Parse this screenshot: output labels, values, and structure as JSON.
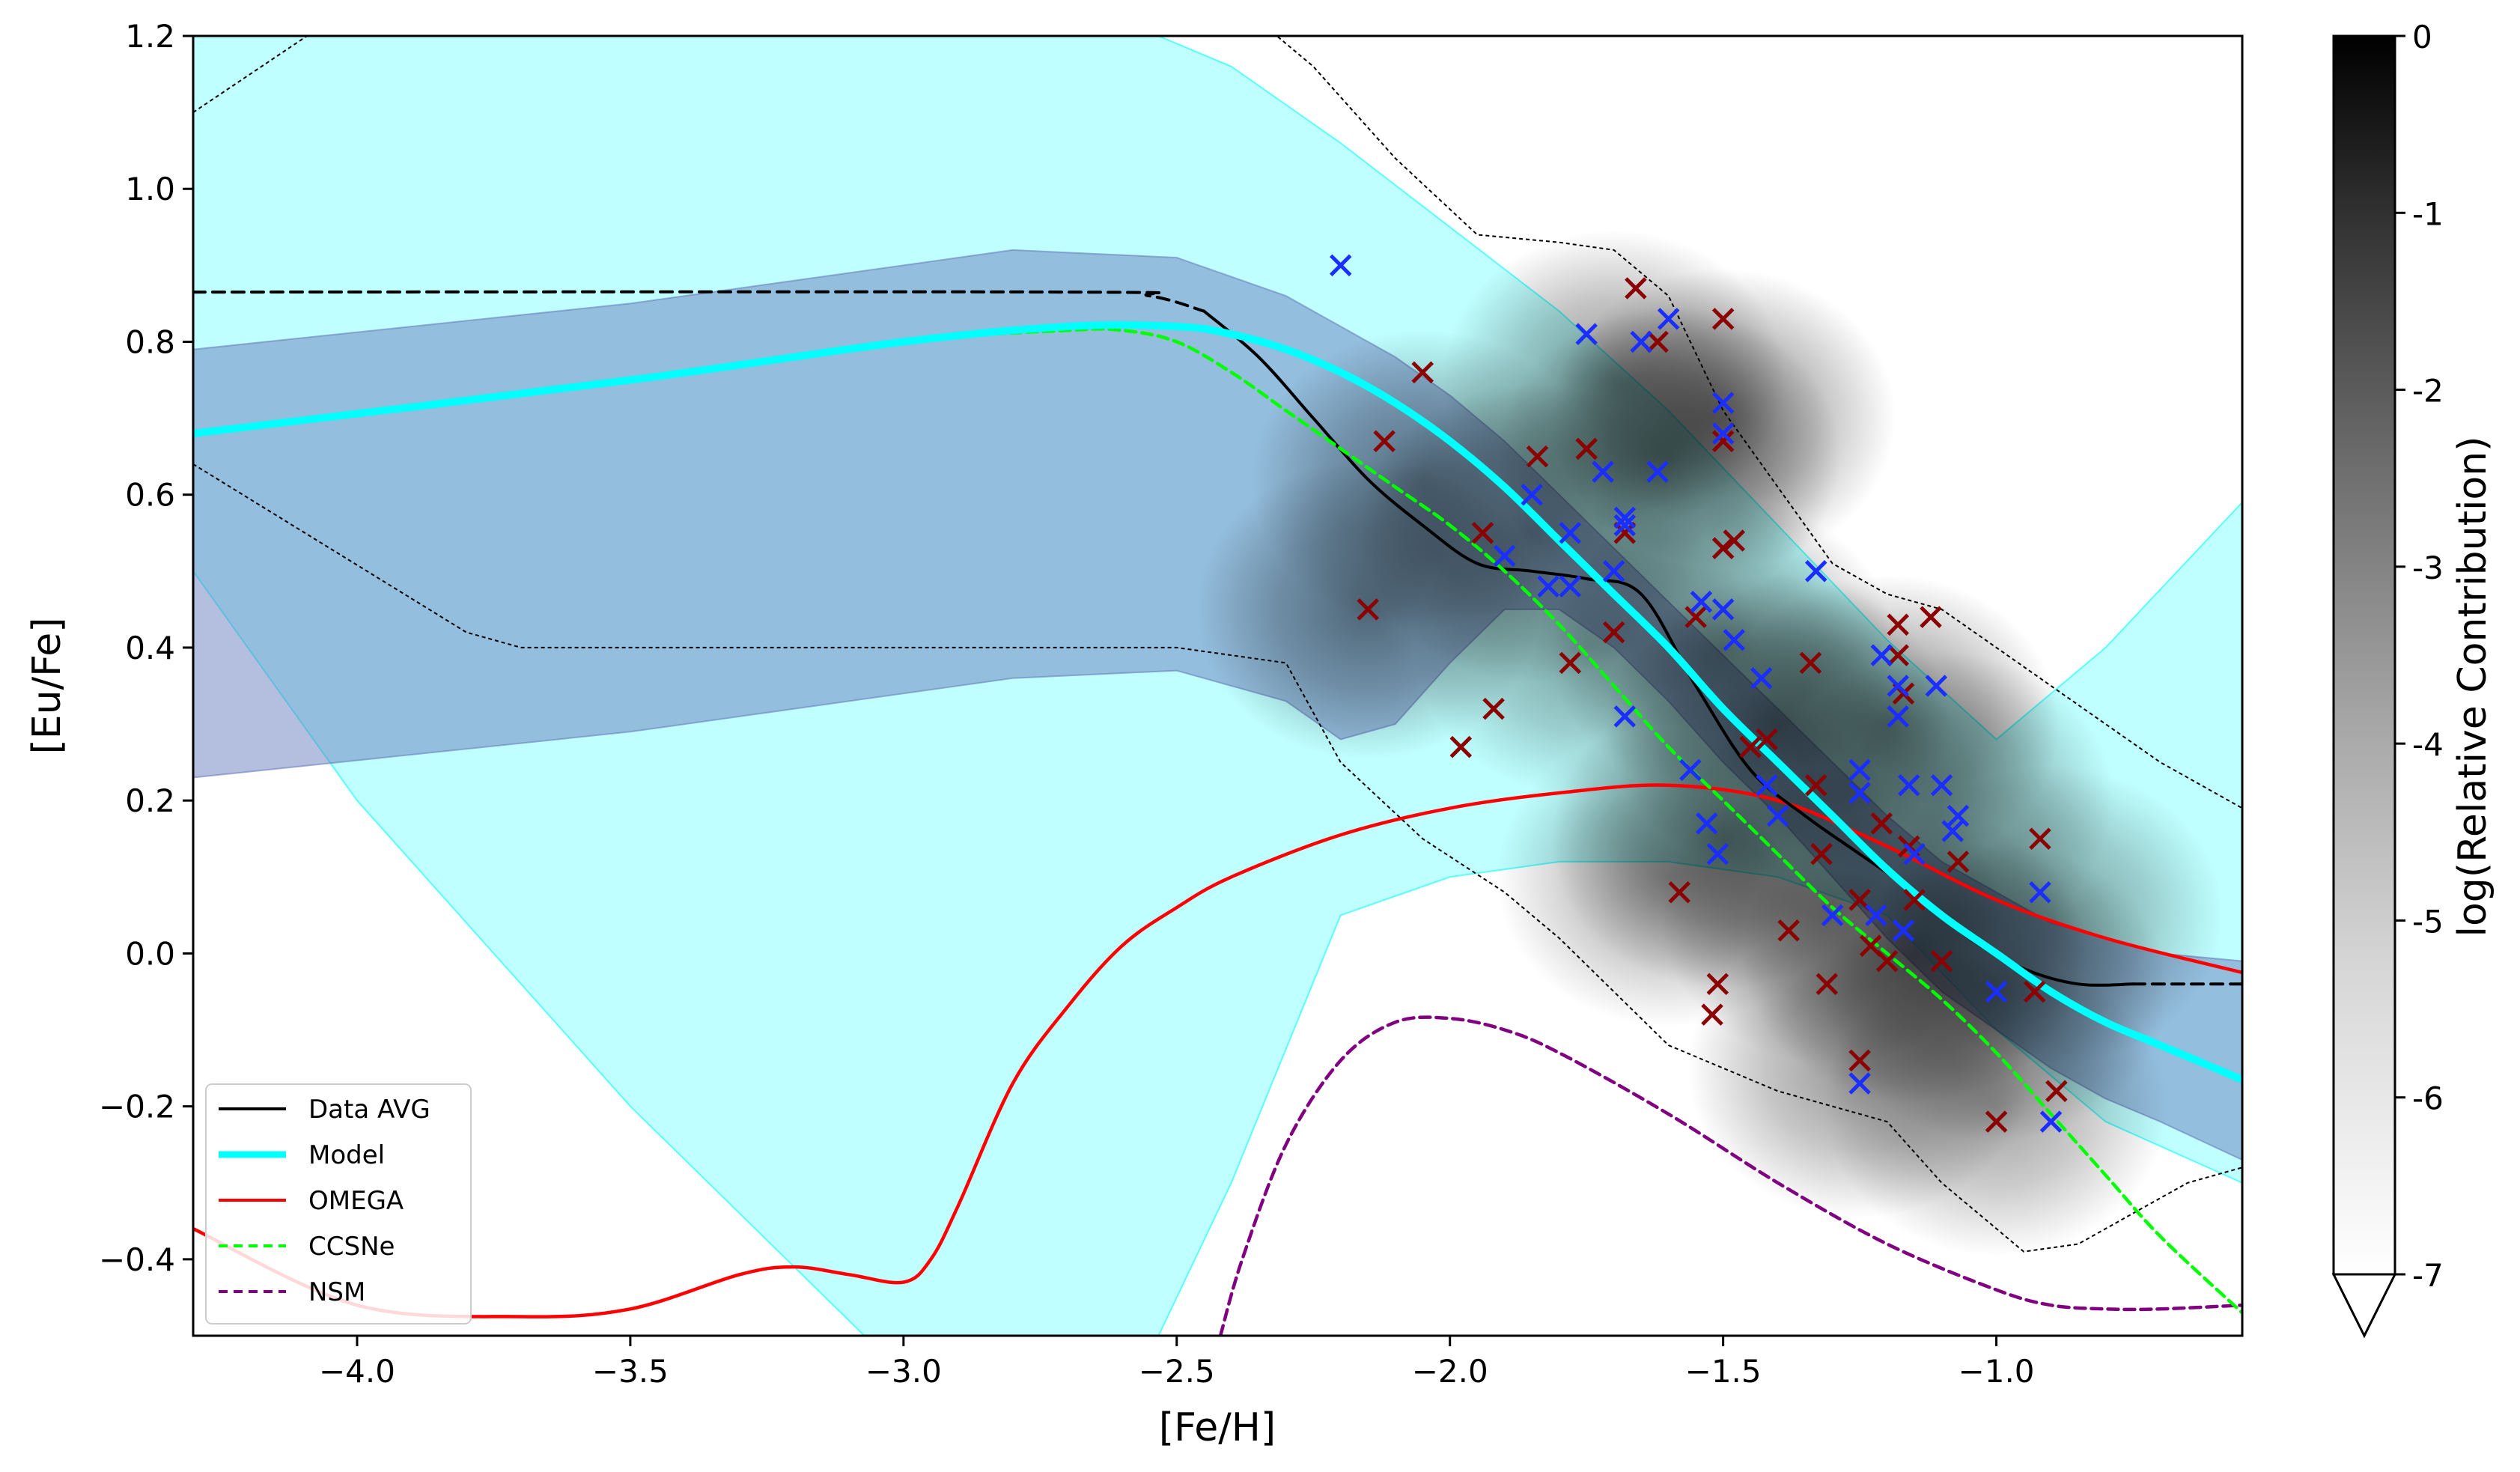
{
  "chart_data": {
    "type": "scatter",
    "xlabel": "[Fe/H]",
    "ylabel": "[Eu/Fe]",
    "xlim": [
      -4.3,
      -0.55
    ],
    "ylim": [
      -0.5,
      1.2
    ],
    "x_ticks": [
      -4.0,
      -3.5,
      -3.0,
      -2.5,
      -2.0,
      -1.5,
      -1.0
    ],
    "x_tick_labels": [
      "−4.0",
      "−3.5",
      "−3.0",
      "−2.5",
      "−2.0",
      "−1.5",
      "−1.0"
    ],
    "y_ticks": [
      -0.4,
      -0.2,
      0.0,
      0.2,
      0.4,
      0.6,
      0.8,
      1.0,
      1.2
    ],
    "y_tick_labels": [
      "−0.4",
      "−0.2",
      "0.0",
      "0.2",
      "0.4",
      "0.6",
      "0.8",
      "1.0",
      "1.2"
    ],
    "colorbar": {
      "label": "log(Relative Contribution)",
      "range": [
        -7,
        0
      ],
      "ticks": [
        0,
        -1,
        -2,
        -3,
        -4,
        -5,
        -6,
        -7
      ],
      "tick_labels": [
        "0",
        "-1",
        "-2",
        "-3",
        "-4",
        "-5",
        "-6",
        "-7"
      ],
      "extend": "min"
    },
    "legend": {
      "location": "lower-left",
      "entries": [
        {
          "label": "Data AVG",
          "color": "#000000",
          "style": "solid"
        },
        {
          "label": "Model",
          "color": "#00ffff",
          "style": "solid-thick"
        },
        {
          "label": "OMEGA",
          "color": "#ff0000",
          "style": "solid"
        },
        {
          "label": "CCSNe",
          "color": "#00ff00",
          "style": "dashed"
        },
        {
          "label": "NSM",
          "color": "#800080",
          "style": "dashed"
        }
      ]
    },
    "series": [
      {
        "name": "Data AVG",
        "color": "#000000",
        "x": [
          -2.45,
          -2.35,
          -2.25,
          -2.15,
          -2.05,
          -1.95,
          -1.85,
          -1.75,
          -1.65,
          -1.55,
          -1.45,
          -1.35,
          -1.25,
          -1.15,
          -1.05,
          -0.95,
          -0.85,
          -0.75
        ],
        "y": [
          0.84,
          0.78,
          0.7,
          0.62,
          0.56,
          0.51,
          0.5,
          0.49,
          0.47,
          0.35,
          0.24,
          0.18,
          0.13,
          0.08,
          0.02,
          -0.02,
          -0.04,
          -0.04
        ]
      },
      {
        "name": "Data AVG (extrapolated)",
        "color": "#000000",
        "x": [
          -4.3,
          -2.7,
          -2.55,
          -2.45
        ],
        "y": [
          0.865,
          0.865,
          0.86,
          0.84
        ]
      },
      {
        "name": "Data AVG (extrapolated high)",
        "color": "#000000",
        "x": [
          -0.75,
          -0.55
        ],
        "y": [
          -0.04,
          -0.04
        ]
      },
      {
        "name": "Model",
        "color": "#00ffff",
        "x": [
          -4.3,
          -3.5,
          -3.0,
          -2.7,
          -2.5,
          -2.4,
          -2.3,
          -2.2,
          -2.1,
          -2.0,
          -1.9,
          -1.8,
          -1.7,
          -1.6,
          -1.5,
          -1.4,
          -1.3,
          -1.2,
          -1.1,
          -1.0,
          -0.9,
          -0.8,
          -0.7,
          -0.55
        ],
        "y": [
          0.68,
          0.75,
          0.8,
          0.82,
          0.82,
          0.81,
          0.79,
          0.76,
          0.72,
          0.67,
          0.61,
          0.54,
          0.47,
          0.4,
          0.32,
          0.25,
          0.18,
          0.11,
          0.05,
          0.0,
          -0.05,
          -0.09,
          -0.12,
          -0.165
        ]
      },
      {
        "name": "OMEGA",
        "color": "#ff0000",
        "x": [
          -4.3,
          -4.0,
          -3.7,
          -3.5,
          -3.3,
          -3.2,
          -3.1,
          -3.0,
          -2.95,
          -2.9,
          -2.8,
          -2.7,
          -2.6,
          -2.5,
          -2.4,
          -2.2,
          -2.0,
          -1.8,
          -1.6,
          -1.4,
          -1.2,
          -1.0,
          -0.8,
          -0.55
        ],
        "y": [
          -0.36,
          -0.46,
          -0.475,
          -0.465,
          -0.42,
          -0.41,
          -0.42,
          -0.43,
          -0.4,
          -0.33,
          -0.17,
          -0.07,
          0.01,
          0.06,
          0.1,
          0.155,
          0.19,
          0.21,
          0.22,
          0.2,
          0.14,
          0.07,
          0.02,
          -0.025
        ]
      },
      {
        "name": "CCSNe",
        "color": "#00ff00",
        "x": [
          -4.3,
          -3.5,
          -3.0,
          -2.7,
          -2.6,
          -2.5,
          -2.4,
          -2.3,
          -2.2,
          -2.1,
          -2.0,
          -1.9,
          -1.8,
          -1.7,
          -1.6,
          -1.5,
          -1.4,
          -1.3,
          -1.2,
          -1.1,
          -1.0,
          -0.9,
          -0.8,
          -0.7,
          -0.55
        ],
        "y": [
          0.68,
          0.75,
          0.8,
          0.815,
          0.815,
          0.8,
          0.76,
          0.71,
          0.66,
          0.61,
          0.56,
          0.5,
          0.43,
          0.35,
          0.27,
          0.2,
          0.13,
          0.06,
          0.0,
          -0.06,
          -0.13,
          -0.21,
          -0.29,
          -0.37,
          -0.47
        ]
      },
      {
        "name": "NSM",
        "color": "#800080",
        "x": [
          -2.42,
          -2.38,
          -2.3,
          -2.2,
          -2.1,
          -2.0,
          -1.9,
          -1.8,
          -1.6,
          -1.4,
          -1.2,
          -1.0,
          -0.9,
          -0.8,
          -0.7,
          -0.55
        ],
        "y": [
          -0.5,
          -0.4,
          -0.25,
          -0.14,
          -0.09,
          -0.085,
          -0.1,
          -0.13,
          -0.21,
          -0.3,
          -0.38,
          -0.44,
          -0.46,
          -0.465,
          -0.465,
          -0.46
        ]
      }
    ],
    "bands": [
      {
        "name": "cyan band",
        "color": "#00ffff",
        "x": [
          -4.3,
          -4.0,
          -3.5,
          -3.0,
          -2.6,
          -2.4,
          -2.2,
          -2.0,
          -1.8,
          -1.6,
          -1.4,
          -1.2,
          -1.0,
          -0.8,
          -0.55
        ],
        "upper": [
          1.3,
          1.3,
          1.3,
          1.3,
          1.22,
          1.16,
          1.06,
          0.95,
          0.84,
          0.71,
          0.56,
          0.41,
          0.28,
          0.4,
          0.59
        ],
        "lower": [
          0.5,
          0.2,
          -0.2,
          -0.55,
          -0.6,
          -0.3,
          0.05,
          0.1,
          0.12,
          0.12,
          0.1,
          0.05,
          -0.1,
          -0.22,
          -0.3
        ]
      },
      {
        "name": "blue band",
        "color": "#6a7dbd",
        "x": [
          -4.3,
          -3.5,
          -2.8,
          -2.5,
          -2.3,
          -2.2,
          -2.1,
          -2.0,
          -1.9,
          -1.8,
          -1.7,
          -1.6,
          -1.5,
          -1.4,
          -1.3,
          -1.2,
          -1.1,
          -1.0,
          -0.9,
          -0.8,
          -0.7,
          -0.55
        ],
        "upper": [
          0.79,
          0.85,
          0.92,
          0.91,
          0.86,
          0.82,
          0.78,
          0.73,
          0.67,
          0.6,
          0.53,
          0.46,
          0.39,
          0.32,
          0.25,
          0.18,
          0.12,
          0.08,
          0.04,
          0.02,
          0.0,
          -0.01
        ],
        "lower": [
          0.23,
          0.29,
          0.36,
          0.37,
          0.33,
          0.28,
          0.3,
          0.38,
          0.45,
          0.45,
          0.4,
          0.33,
          0.25,
          0.18,
          0.1,
          0.02,
          -0.05,
          -0.1,
          -0.15,
          -0.19,
          -0.22,
          -0.27
        ]
      }
    ],
    "envelope": [
      {
        "name": "upper envelope",
        "x": [
          -4.3,
          -4.05,
          -2.35,
          -2.25,
          -2.1,
          -1.95,
          -1.8,
          -1.7,
          -1.6,
          -1.5,
          -1.4,
          -1.3,
          -1.2,
          -1.1,
          -1.0,
          -0.9,
          -0.8,
          -0.7,
          -0.55
        ],
        "y": [
          1.1,
          1.22,
          1.22,
          1.16,
          1.04,
          0.94,
          0.93,
          0.92,
          0.86,
          0.71,
          0.61,
          0.51,
          0.47,
          0.45,
          0.4,
          0.35,
          0.3,
          0.25,
          0.19
        ]
      },
      {
        "name": "lower envelope",
        "x": [
          -4.3,
          -3.8,
          -3.7,
          -2.5,
          -2.3,
          -2.2,
          -2.05,
          -1.9,
          -1.8,
          -1.7,
          -1.6,
          -1.5,
          -1.4,
          -1.3,
          -1.2,
          -1.1,
          -1.0,
          -0.95,
          -0.85,
          -0.75,
          -0.65,
          -0.55
        ],
        "y": [
          0.64,
          0.42,
          0.4,
          0.4,
          0.38,
          0.25,
          0.15,
          0.08,
          0.02,
          -0.05,
          -0.12,
          -0.15,
          -0.18,
          -0.2,
          -0.22,
          -0.3,
          -0.36,
          -0.39,
          -0.38,
          -0.34,
          -0.3,
          -0.28
        ]
      }
    ],
    "points_blue": [
      [
        -2.2,
        0.9
      ],
      [
        -1.85,
        0.6
      ],
      [
        -1.9,
        0.52
      ],
      [
        -1.82,
        0.48
      ],
      [
        -1.78,
        0.48
      ],
      [
        -1.78,
        0.55
      ],
      [
        -1.75,
        0.81
      ],
      [
        -1.72,
        0.63
      ],
      [
        -1.7,
        0.5
      ],
      [
        -1.68,
        0.57
      ],
      [
        -1.68,
        0.56
      ],
      [
        -1.68,
        0.31
      ],
      [
        -1.65,
        0.8
      ],
      [
        -1.62,
        0.63
      ],
      [
        -1.6,
        0.83
      ],
      [
        -1.56,
        0.24
      ],
      [
        -1.54,
        0.46
      ],
      [
        -1.53,
        0.17
      ],
      [
        -1.51,
        0.13
      ],
      [
        -1.5,
        0.72
      ],
      [
        -1.5,
        0.68
      ],
      [
        -1.5,
        0.45
      ],
      [
        -1.48,
        0.41
      ],
      [
        -1.43,
        0.36
      ],
      [
        -1.42,
        0.22
      ],
      [
        -1.4,
        0.18
      ],
      [
        -1.33,
        0.5
      ],
      [
        -1.3,
        0.05
      ],
      [
        -1.25,
        0.24
      ],
      [
        -1.25,
        0.21
      ],
      [
        -1.25,
        -0.17
      ],
      [
        -1.22,
        0.05
      ],
      [
        -1.21,
        0.39
      ],
      [
        -1.18,
        0.31
      ],
      [
        -1.18,
        0.35
      ],
      [
        -1.17,
        0.03
      ],
      [
        -1.16,
        0.22
      ],
      [
        -1.15,
        0.13
      ],
      [
        -1.11,
        0.35
      ],
      [
        -1.1,
        0.22
      ],
      [
        -1.08,
        0.16
      ],
      [
        -1.07,
        0.18
      ],
      [
        -1.0,
        -0.05
      ],
      [
        -0.92,
        0.08
      ],
      [
        -0.9,
        -0.22
      ]
    ],
    "points_red": [
      [
        -2.15,
        0.45
      ],
      [
        -2.12,
        0.67
      ],
      [
        -2.05,
        0.76
      ],
      [
        -1.98,
        0.27
      ],
      [
        -1.94,
        0.55
      ],
      [
        -1.92,
        0.32
      ],
      [
        -1.84,
        0.65
      ],
      [
        -1.78,
        0.38
      ],
      [
        -1.75,
        0.66
      ],
      [
        -1.7,
        0.42
      ],
      [
        -1.68,
        0.55
      ],
      [
        -1.66,
        0.87
      ],
      [
        -1.62,
        0.8
      ],
      [
        -1.58,
        0.08
      ],
      [
        -1.55,
        0.44
      ],
      [
        -1.52,
        -0.08
      ],
      [
        -1.51,
        -0.04
      ],
      [
        -1.5,
        0.67
      ],
      [
        -1.5,
        0.53
      ],
      [
        -1.5,
        0.83
      ],
      [
        -1.48,
        0.54
      ],
      [
        -1.45,
        0.27
      ],
      [
        -1.42,
        0.28
      ],
      [
        -1.38,
        0.03
      ],
      [
        -1.34,
        0.38
      ],
      [
        -1.33,
        0.22
      ],
      [
        -1.32,
        0.13
      ],
      [
        -1.31,
        -0.04
      ],
      [
        -1.25,
        -0.14
      ],
      [
        -1.25,
        0.07
      ],
      [
        -1.23,
        0.01
      ],
      [
        -1.21,
        0.17
      ],
      [
        -1.2,
        -0.01
      ],
      [
        -1.18,
        0.39
      ],
      [
        -1.18,
        0.43
      ],
      [
        -1.17,
        0.34
      ],
      [
        -1.16,
        0.14
      ],
      [
        -1.15,
        0.07
      ],
      [
        -1.12,
        0.44
      ],
      [
        -1.1,
        -0.01
      ],
      [
        -1.07,
        0.12
      ],
      [
        -1.0,
        -0.22
      ],
      [
        -0.93,
        -0.05
      ],
      [
        -0.92,
        0.15
      ],
      [
        -0.89,
        -0.18
      ]
    ],
    "density_blobs": [
      [
        -2.15,
        0.45,
        1.0
      ],
      [
        -2.05,
        0.62,
        0.9
      ],
      [
        -1.85,
        0.55,
        0.9
      ],
      [
        -1.7,
        0.75,
        0.9
      ],
      [
        -1.6,
        0.65,
        1.0
      ],
      [
        -1.5,
        0.7,
        1.0
      ],
      [
        -1.5,
        0.4,
        1.0
      ],
      [
        -1.4,
        0.3,
        1.0
      ],
      [
        -1.2,
        0.3,
        1.0
      ],
      [
        -1.1,
        0.2,
        0.9
      ],
      [
        -1.5,
        0.15,
        1.0
      ],
      [
        -1.3,
        0.05,
        1.0
      ],
      [
        -1.15,
        0.0,
        1.0
      ],
      [
        -1.0,
        -0.05,
        0.9
      ],
      [
        -0.9,
        0.05,
        0.8
      ],
      [
        -1.25,
        -0.15,
        0.9
      ],
      [
        -1.0,
        -0.2,
        0.8
      ],
      [
        -1.75,
        0.4,
        0.8
      ],
      [
        -1.6,
        0.1,
        0.8
      ]
    ]
  }
}
